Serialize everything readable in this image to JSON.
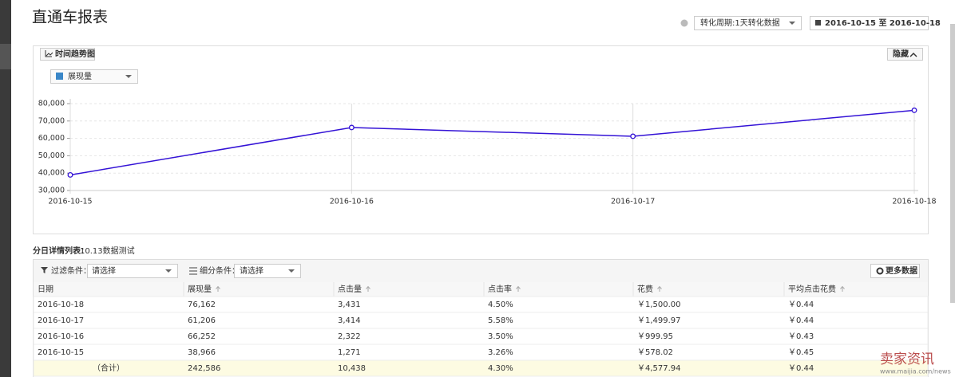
{
  "header": {
    "title": "直通车报表",
    "period": "转化周期:1天转化数据",
    "date_range": "2016-10-15 至 2016-10-18"
  },
  "chart_panel": {
    "tab": "时间趋势图",
    "hide_button": "隐藏",
    "metric": "展现量"
  },
  "chart_data": {
    "type": "line",
    "categories": [
      "2016-10-15",
      "2016-10-16",
      "2016-10-17",
      "2016-10-18"
    ],
    "series": [
      {
        "name": "展现量",
        "color": "#3413d6",
        "values": [
          38966,
          66252,
          61206,
          76162
        ]
      }
    ],
    "ylim": [
      30000,
      80000
    ],
    "yticks": [
      {
        "value": 30000,
        "label": "30,000"
      },
      {
        "value": 40000,
        "label": "40,000"
      },
      {
        "value": 50000,
        "label": "50,000"
      },
      {
        "value": 60000,
        "label": "60,000"
      },
      {
        "value": 70000,
        "label": "70,000"
      },
      {
        "value": 80000,
        "label": "80,000"
      }
    ],
    "grid": true
  },
  "table": {
    "caption_label": "分日详情列表：",
    "caption": "10.13数据测试",
    "filter_label": "过滤条件：",
    "filter_value": "请选择",
    "segment_label": "细分条件：",
    "segment_value": "请选择",
    "more_button": "更多数据",
    "columns": [
      "日期",
      "展现量",
      "点击量",
      "点击率",
      "花费",
      "平均点击花费"
    ],
    "rows": [
      [
        "2016-10-18",
        "76,162",
        "3,431",
        "4.50%",
        "￥1,500.00",
        "￥0.44"
      ],
      [
        "2016-10-17",
        "61,206",
        "3,414",
        "5.58%",
        "￥1,499.97",
        "￥0.44"
      ],
      [
        "2016-10-16",
        "66,252",
        "2,322",
        "3.50%",
        "￥999.95",
        "￥0.43"
      ],
      [
        "2016-10-15",
        "38,966",
        "1,271",
        "3.26%",
        "￥578.02",
        "￥0.45"
      ]
    ],
    "total": [
      "（合计）",
      "242,586",
      "10,438",
      "4.30%",
      "￥4,577.94",
      "￥0.44"
    ]
  },
  "watermark": {
    "brand": "卖家资讯",
    "url": "www.maijia.com/news"
  }
}
